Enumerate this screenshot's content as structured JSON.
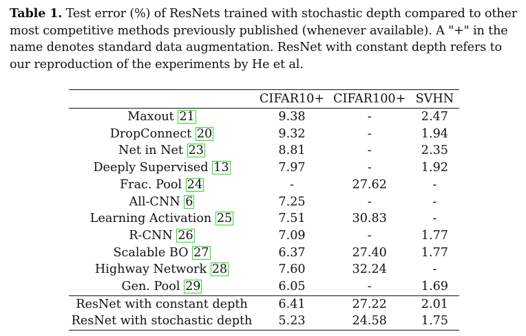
{
  "caption": {
    "label": "Table 1.",
    "text": " Test error (%) of ResNets trained with stochastic depth compared to other most competitive methods previously published (whenever available). A \"+\" in the name denotes standard data augmentation. ResNet with constant depth refers to our reproduction of the experiments by He et al."
  },
  "table": {
    "headers": [
      "",
      "CIFAR10+",
      "CIFAR100+",
      "SVHN"
    ],
    "rows": [
      {
        "name": "Maxout",
        "ref": "21",
        "c10": "9.38",
        "c100": "-",
        "svhn": "2.47"
      },
      {
        "name": "DropConnect",
        "ref": "20",
        "c10": "9.32",
        "c100": "-",
        "svhn": "1.94"
      },
      {
        "name": "Net in Net",
        "ref": "23",
        "c10": "8.81",
        "c100": "-",
        "svhn": "2.35"
      },
      {
        "name": "Deeply Supervised",
        "ref": "13",
        "c10": "7.97",
        "c100": "-",
        "svhn": "1.92"
      },
      {
        "name": "Frac. Pool",
        "ref": "24",
        "c10": "-",
        "c100": "27.62",
        "svhn": "-"
      },
      {
        "name": "All-CNN",
        "ref": "6",
        "c10": "7.25",
        "c100": "-",
        "svhn": "-"
      },
      {
        "name": "Learning Activation",
        "ref": "25",
        "c10": "7.51",
        "c100": "30.83",
        "svhn": "-"
      },
      {
        "name": "R-CNN",
        "ref": "26",
        "c10": "7.09",
        "c100": "-",
        "svhn": "1.77"
      },
      {
        "name": "Scalable BO",
        "ref": "27",
        "c10": "6.37",
        "c100": "27.40",
        "svhn": "1.77"
      },
      {
        "name": "Highway Network",
        "ref": "28",
        "c10": "7.60",
        "c100": "32.24",
        "svhn": "-"
      },
      {
        "name": "Gen. Pool",
        "ref": "29",
        "c10": "6.05",
        "c100": "-",
        "svhn": "1.69"
      }
    ],
    "ours": [
      {
        "name": "ResNet with constant depth",
        "c10": "6.41",
        "c100": "27.22",
        "svhn": "2.01"
      },
      {
        "name": "ResNet with stochastic depth",
        "c10": "5.23",
        "c100": "24.58",
        "svhn": "1.75"
      }
    ]
  }
}
